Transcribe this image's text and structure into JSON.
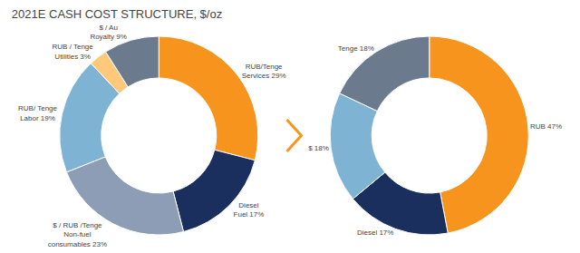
{
  "chart_data": [
    {
      "type": "pie",
      "title": "2021E CASH COST STRUCTURE, $/oz",
      "values": [
        29,
        17,
        23,
        19,
        3,
        9
      ],
      "value_labels": [
        "RUB/Tenge\nServices 29%",
        "Diesel\nFuel 17%",
        "$ / RUB /Tenge\nNon-fuel\nconsumables 23%",
        "RUB/ Tenge\nLabor 19%",
        "RUB / Tenge\nUtilities 3%",
        "$ / Au\nRoyalty 9%"
      ],
      "colors": [
        "#f7941d",
        "#1b2f5e",
        "#8c9db5",
        "#7fb3d3",
        "#ffc87a",
        "#6b7b8d"
      ],
      "data_labels": true
    },
    {
      "type": "pie",
      "values": [
        47,
        17,
        18,
        18
      ],
      "value_labels": [
        "RUB 47%",
        "Diesel 17%",
        "$ 18%",
        "Tenge 18%"
      ],
      "colors": [
        "#f7941d",
        "#1b2f5e",
        "#7fb3d3",
        "#6b7b8d"
      ],
      "data_labels": true
    }
  ]
}
